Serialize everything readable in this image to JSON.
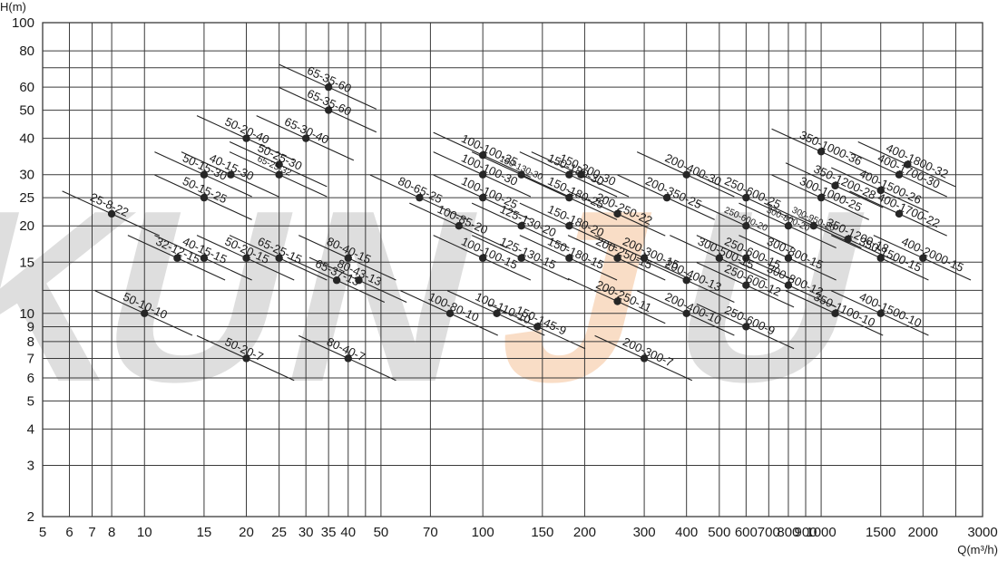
{
  "chart_data": {
    "type": "scatter",
    "title": "",
    "x_scale": "log",
    "y_scale": "log",
    "xlabel": "Q(m³/h)",
    "ylabel": "H(m)",
    "xlim": [
      5,
      3000
    ],
    "ylim": [
      2,
      100
    ],
    "grid": true,
    "legend": "none",
    "colors": {
      "grid": "#3a3a3a",
      "line": "#222222",
      "point": "#262626",
      "watermark_gray": "#d4d4d4",
      "watermark_orange": "#f8d2b4"
    },
    "watermark": "KUNJU",
    "x_ticks": [
      5,
      6,
      7,
      8,
      10,
      15,
      20,
      25,
      30,
      35,
      40,
      50,
      70,
      100,
      150,
      200,
      300,
      400,
      500,
      600,
      700,
      800,
      900,
      1000,
      1500,
      2000,
      3000
    ],
    "x_tick_labels": [
      "5",
      "6",
      "7",
      "8",
      "10",
      "15",
      "20",
      "25",
      "30",
      "35",
      "40",
      "50",
      "70",
      "100",
      "150",
      "200",
      "300",
      "400",
      "500",
      "600",
      "700",
      "800",
      "900",
      "1000",
      "1500",
      "2000",
      "3000"
    ],
    "x_grid": [
      5,
      6,
      7,
      8,
      10,
      15,
      20,
      25,
      30,
      35,
      40,
      45,
      50,
      70,
      100,
      150,
      200,
      300,
      400,
      500,
      600,
      700,
      800,
      900,
      1000,
      1500,
      2000,
      2500,
      3000
    ],
    "y_ticks": [
      2,
      3,
      4,
      5,
      6,
      7,
      8,
      9,
      10,
      15,
      20,
      25,
      30,
      40,
      50,
      60,
      80,
      100
    ],
    "y_tick_labels": [
      "2",
      "3",
      "4",
      "5",
      "6",
      "7",
      "8",
      "9",
      "10",
      "15",
      "20",
      "25",
      "30",
      "40",
      "50",
      "60",
      "80",
      "100"
    ],
    "y_grid": [
      2,
      3,
      4,
      5,
      6,
      7,
      8,
      9,
      10,
      12,
      15,
      20,
      25,
      30,
      40,
      50,
      60,
      70,
      80,
      100
    ],
    "series": [
      {
        "label": "65-35-60",
        "x": 35,
        "y": 60,
        "size": "n"
      },
      {
        "label": "65-35-60",
        "x": 35,
        "y": 50,
        "size": "n"
      },
      {
        "label": "65-30-40",
        "x": 30,
        "y": 40,
        "size": "n"
      },
      {
        "label": "50-20-40",
        "x": 20,
        "y": 40,
        "size": "n"
      },
      {
        "label": "50-25-30",
        "x": 25,
        "y": 32.5,
        "size": "n"
      },
      {
        "label": "65-25-32",
        "x": 25,
        "y": 30,
        "size": "s"
      },
      {
        "label": "50-15-30",
        "x": 15,
        "y": 30,
        "size": "n"
      },
      {
        "label": "40-15-30",
        "x": 18,
        "y": 30,
        "size": "n"
      },
      {
        "label": "50-15-25",
        "x": 15,
        "y": 25,
        "size": "n"
      },
      {
        "label": "25-8-22",
        "x": 8,
        "y": 22,
        "size": "n"
      },
      {
        "label": "32-12-15",
        "x": 12.5,
        "y": 15.5,
        "size": "n"
      },
      {
        "label": "40-15-15",
        "x": 15,
        "y": 15.5,
        "size": "n"
      },
      {
        "label": "50-20-15",
        "x": 20,
        "y": 15.5,
        "size": "n"
      },
      {
        "label": "65-25-15",
        "x": 25,
        "y": 15.5,
        "size": "n"
      },
      {
        "label": "80-40-15",
        "x": 40,
        "y": 15.5,
        "size": "n"
      },
      {
        "label": "65-37-13",
        "x": 37,
        "y": 13,
        "size": "n"
      },
      {
        "label": "80-43-13",
        "x": 43,
        "y": 13,
        "size": "n"
      },
      {
        "label": "50-10-10",
        "x": 10,
        "y": 10,
        "size": "n"
      },
      {
        "label": "50-20-7",
        "x": 20,
        "y": 7,
        "size": "n"
      },
      {
        "label": "80-40-7",
        "x": 40,
        "y": 7,
        "size": "n"
      },
      {
        "label": "100-100-35",
        "x": 100,
        "y": 35,
        "size": "n"
      },
      {
        "label": "100-100-30",
        "x": 100,
        "y": 30,
        "size": "n"
      },
      {
        "label": "150-130-30",
        "x": 130,
        "y": 30,
        "size": "s"
      },
      {
        "label": "150-180-30",
        "x": 180,
        "y": 30,
        "size": "n"
      },
      {
        "label": "150-200-30",
        "x": 195,
        "y": 30,
        "size": "n"
      },
      {
        "label": "150-180-25",
        "x": 180,
        "y": 25,
        "size": "n"
      },
      {
        "label": "100-100-25",
        "x": 100,
        "y": 25,
        "size": "n"
      },
      {
        "label": "80-65-25",
        "x": 65,
        "y": 25,
        "size": "n"
      },
      {
        "label": "200-250-22",
        "x": 250,
        "y": 22,
        "size": "n"
      },
      {
        "label": "150-180-20",
        "x": 180,
        "y": 20,
        "size": "n"
      },
      {
        "label": "125-130-20",
        "x": 130,
        "y": 20,
        "size": "n"
      },
      {
        "label": "100-85-20",
        "x": 85,
        "y": 20,
        "size": "n"
      },
      {
        "label": "100-100-15",
        "x": 100,
        "y": 15.5,
        "size": "n"
      },
      {
        "label": "125-130-15",
        "x": 130,
        "y": 15.5,
        "size": "n"
      },
      {
        "label": "150-180-15",
        "x": 180,
        "y": 15.5,
        "size": "n"
      },
      {
        "label": "200-250-15",
        "x": 250,
        "y": 15.5,
        "size": "n"
      },
      {
        "label": "200-300-15",
        "x": 300,
        "y": 15.5,
        "size": "n"
      },
      {
        "label": "100-80-10",
        "x": 80,
        "y": 10,
        "size": "n"
      },
      {
        "label": "100-110-10",
        "x": 110,
        "y": 10,
        "size": "n"
      },
      {
        "label": "150-145-9",
        "x": 145,
        "y": 9,
        "size": "n"
      },
      {
        "label": "200-250-11",
        "x": 250,
        "y": 11,
        "size": "n"
      },
      {
        "label": "200-300-7",
        "x": 300,
        "y": 7,
        "size": "n"
      },
      {
        "label": "200-400-30",
        "x": 400,
        "y": 30,
        "size": "n"
      },
      {
        "label": "250-600-25",
        "x": 600,
        "y": 25,
        "size": "n"
      },
      {
        "label": "200-350-25",
        "x": 350,
        "y": 25,
        "size": "n"
      },
      {
        "label": "250-600-20",
        "x": 600,
        "y": 20,
        "size": "s"
      },
      {
        "label": "300-800-20",
        "x": 800,
        "y": 20,
        "size": "s"
      },
      {
        "label": "300-950-20",
        "x": 950,
        "y": 20,
        "size": "s"
      },
      {
        "label": "250-600-15",
        "x": 600,
        "y": 15.5,
        "size": "n"
      },
      {
        "label": "300-500-15",
        "x": 500,
        "y": 15.5,
        "size": "n"
      },
      {
        "label": "300-800-15",
        "x": 800,
        "y": 15.5,
        "size": "n"
      },
      {
        "label": "200-400-13",
        "x": 400,
        "y": 13,
        "size": "n"
      },
      {
        "label": "250-600-12",
        "x": 600,
        "y": 12.5,
        "size": "n"
      },
      {
        "label": "300-800-12",
        "x": 800,
        "y": 12.5,
        "size": "n"
      },
      {
        "label": "200-400-10",
        "x": 400,
        "y": 10,
        "size": "n"
      },
      {
        "label": "250-600-9",
        "x": 600,
        "y": 9,
        "size": "n"
      },
      {
        "label": "350-1000-36",
        "x": 1000,
        "y": 36,
        "size": "n"
      },
      {
        "label": "400-1800-32",
        "x": 1800,
        "y": 32.5,
        "size": "n"
      },
      {
        "label": "400-1700-30",
        "x": 1700,
        "y": 30,
        "size": "n"
      },
      {
        "label": "350-1200-28",
        "x": 1100,
        "y": 27.5,
        "size": "n"
      },
      {
        "label": "400-1500-26",
        "x": 1500,
        "y": 26.5,
        "size": "n"
      },
      {
        "label": "300-1000-25",
        "x": 1000,
        "y": 25,
        "size": "n"
      },
      {
        "label": "400-1700-22",
        "x": 1700,
        "y": 22,
        "size": "n"
      },
      {
        "label": "350-1200-18",
        "x": 1200,
        "y": 18,
        "size": "n"
      },
      {
        "label": "400-2000-15",
        "x": 2000,
        "y": 15.5,
        "size": "n"
      },
      {
        "label": "350-1500-15",
        "x": 1500,
        "y": 15.5,
        "size": "n"
      },
      {
        "label": "350-1100-10",
        "x": 1100,
        "y": 10,
        "size": "n"
      },
      {
        "label": "400-1500-10",
        "x": 1500,
        "y": 10,
        "size": "n"
      }
    ]
  }
}
